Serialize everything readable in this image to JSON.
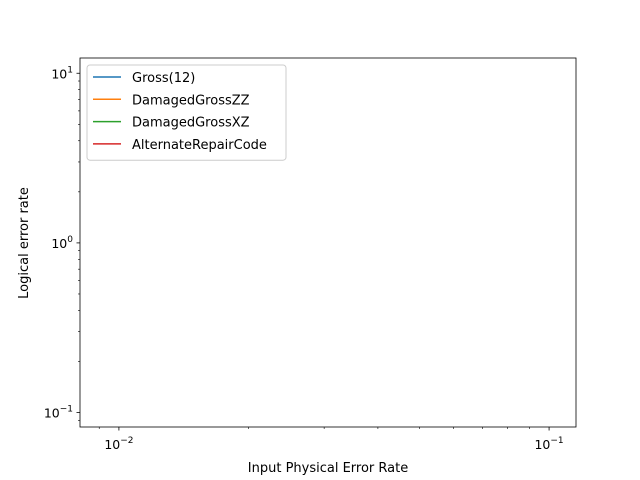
{
  "chart_data": {
    "type": "line",
    "title": "",
    "xlabel": "Input Physical Error Rate",
    "ylabel": "Logical error rate",
    "xscale": "log",
    "yscale": "log",
    "xlim": [
      0.00812,
      0.1155
    ],
    "ylim": [
      0.0822,
      12.3
    ],
    "x_ticks": [
      {
        "value": 0.01,
        "label": "10",
        "exp": "−2"
      },
      {
        "value": 0.1,
        "label": "10",
        "exp": "−1"
      }
    ],
    "y_ticks": [
      {
        "value": 0.1,
        "label": "10",
        "exp": "−1"
      },
      {
        "value": 1,
        "label": "10",
        "exp": "0"
      },
      {
        "value": 10,
        "label": "10",
        "exp": "1"
      }
    ],
    "legend_position": "upper-left",
    "grid": false,
    "series": [
      {
        "name": "Gross(12)",
        "color": "#1f77b4",
        "x": [],
        "y": []
      },
      {
        "name": "DamagedGrossZZ",
        "color": "#ff7f0e",
        "x": [],
        "y": []
      },
      {
        "name": "DamagedGrossXZ",
        "color": "#2ca02c",
        "x": [],
        "y": []
      },
      {
        "name": " AlternateRepairCode",
        "color": "#d62728",
        "x": [],
        "y": []
      }
    ]
  }
}
